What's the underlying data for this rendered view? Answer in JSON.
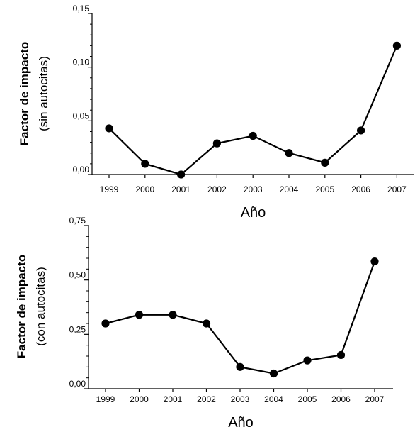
{
  "chart_data": [
    {
      "type": "line",
      "xlabel": "Año",
      "ylabel": "Factor de impacto",
      "ylabel_sub": "(sin autocitas)",
      "categories": [
        "1999",
        "2000",
        "2001",
        "2002",
        "2003",
        "2004",
        "2005",
        "2006",
        "2007"
      ],
      "values": [
        0.043,
        0.01,
        0.0,
        0.029,
        0.036,
        0.02,
        0.011,
        0.041,
        0.12
      ],
      "ylim": [
        0,
        0.15
      ],
      "yticks": [
        "0,00",
        "0,05",
        "0,10",
        "0,15"
      ],
      "ytick_values": [
        0,
        0.05,
        0.1,
        0.15
      ],
      "grid": false,
      "color": "#000000"
    },
    {
      "type": "line",
      "xlabel": "Año",
      "ylabel": "Factor de impacto",
      "ylabel_sub": "(con autocitas)",
      "categories": [
        "1999",
        "2000",
        "2001",
        "2002",
        "2003",
        "2004",
        "2005",
        "2006",
        "2007"
      ],
      "values": [
        0.3,
        0.34,
        0.34,
        0.3,
        0.1,
        0.07,
        0.13,
        0.155,
        0.585
      ],
      "ylim": [
        0,
        0.75
      ],
      "yticks": [
        "0,00",
        "0,25",
        "0,50",
        "0,75"
      ],
      "ytick_values": [
        0,
        0.25,
        0.5,
        0.75
      ],
      "grid": false,
      "color": "#000000"
    }
  ]
}
